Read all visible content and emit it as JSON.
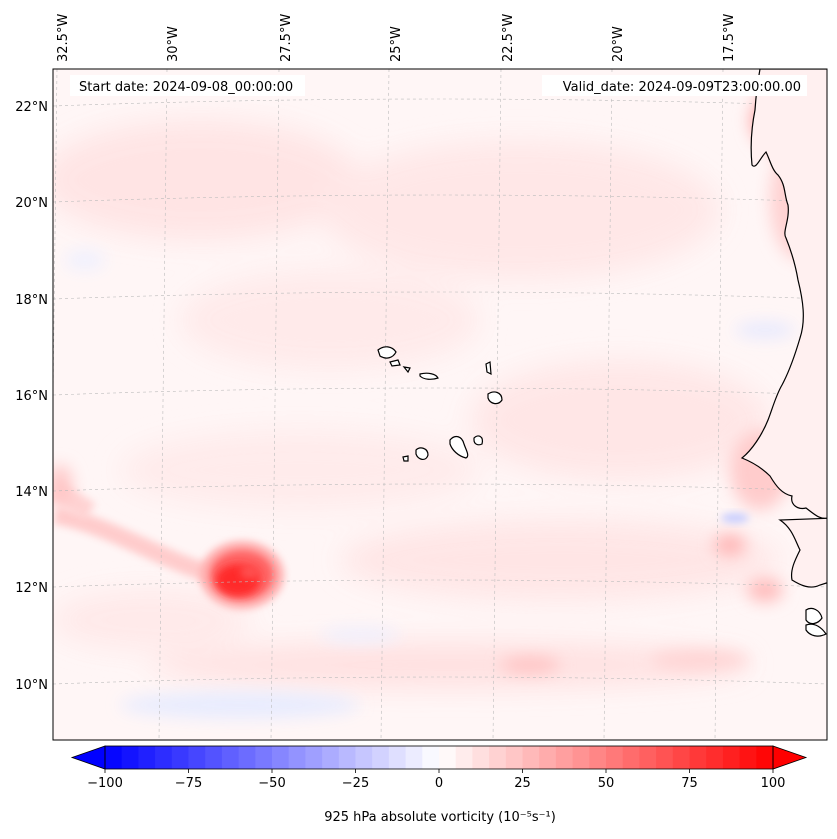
{
  "header": {
    "start_date": "Start date: 2024-09-08_00:00:00",
    "valid_date": "Valid_date: 2024-09-09T23:00:00.00"
  },
  "map": {
    "longitude_labels": [
      "32.5°W",
      "30°W",
      "27.5°W",
      "25°W",
      "22.5°W",
      "20°W",
      "17.5°W"
    ],
    "latitude_labels": [
      "22°N",
      "20°N",
      "18°N",
      "16°N",
      "14°N",
      "12°N",
      "10°N"
    ],
    "field": "925 hPa absolute vorticity",
    "features": [
      "Cabo Verde islands",
      "West African coastline",
      "vorticity maximum near 12°N 28°W"
    ]
  },
  "colorbar": {
    "label": "925 hPa absolute vorticity (10⁻⁵s⁻¹)",
    "tick_labels": [
      "−100",
      "−75",
      "−50",
      "−25",
      "0",
      "25",
      "50",
      "75",
      "100"
    ],
    "min": -100,
    "max": 100,
    "colormap": "bwr",
    "color_low": "#0000ff",
    "color_mid": "#ffffff",
    "color_high": "#ff0000"
  }
}
